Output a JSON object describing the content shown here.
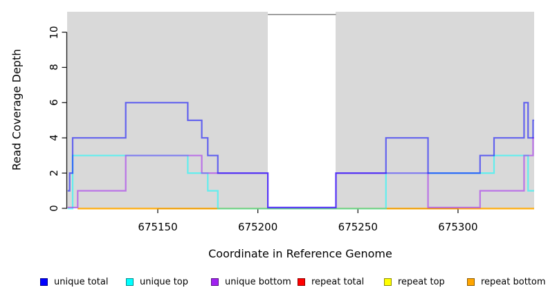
{
  "figure": {
    "xlabel": "Coordinate in Reference Genome",
    "ylabel": "Read Coverage Depth"
  },
  "chart_data": {
    "type": "line",
    "subtype": "step-coverage",
    "title": "",
    "xlabel": "Coordinate in Reference Genome",
    "ylabel": "Read Coverage Depth",
    "xlim": [
      675104.5,
      675338
    ],
    "ylim": [
      0,
      11.15
    ],
    "x_ticks": [
      675150,
      675200,
      675250,
      675300
    ],
    "y_ticks": [
      0,
      2,
      4,
      6,
      8,
      10
    ],
    "grid": false,
    "plot_background": "#d9d9d9",
    "page_background": "#ffffff",
    "masked_region": {
      "x_start": 675205,
      "x_end": 675239,
      "color": "#ffffff",
      "cap_depth": 11,
      "cap_line_color": "#808080"
    },
    "legend_position": "bottom",
    "line_opacity": 0.55,
    "line_width": 2.2,
    "draw_order": [
      "repeat total",
      "repeat top",
      "repeat bottom",
      "unique top",
      "unique bottom",
      "unique total"
    ],
    "series": [
      {
        "name": "unique total",
        "color": "#0000ff",
        "steps": [
          [
            675105,
            1
          ],
          [
            675106,
            2
          ],
          [
            675107.5,
            4
          ],
          [
            675134,
            6
          ],
          [
            675165,
            5
          ],
          [
            675172,
            4
          ],
          [
            675175,
            3
          ],
          [
            675180,
            2
          ],
          [
            675205,
            0
          ],
          [
            675239,
            2
          ],
          [
            675264,
            4
          ],
          [
            675285,
            2
          ],
          [
            675311,
            3
          ],
          [
            675318,
            4
          ],
          [
            675333,
            6
          ],
          [
            675335,
            4
          ],
          [
            675337.5,
            5
          ],
          [
            675338,
            5
          ]
        ]
      },
      {
        "name": "unique top",
        "color": "#00ffff",
        "steps": [
          [
            675105,
            0
          ],
          [
            675107.5,
            3
          ],
          [
            675165,
            2
          ],
          [
            675175,
            1
          ],
          [
            675180,
            0
          ],
          [
            675264,
            2
          ],
          [
            675318,
            3
          ],
          [
            675335,
            1
          ],
          [
            675338,
            1
          ]
        ]
      },
      {
        "name": "unique bottom",
        "color": "#a020f0",
        "steps": [
          [
            675105,
            0
          ],
          [
            675110,
            1
          ],
          [
            675134,
            3
          ],
          [
            675172,
            2
          ],
          [
            675205,
            0
          ],
          [
            675239,
            2
          ],
          [
            675285,
            0
          ],
          [
            675311,
            1
          ],
          [
            675333,
            3
          ],
          [
            675337.5,
            4
          ],
          [
            675338,
            4
          ]
        ]
      },
      {
        "name": "repeat total",
        "color": "#ff0000",
        "steps": [
          [
            675110,
            0
          ],
          [
            675338,
            0
          ]
        ]
      },
      {
        "name": "repeat top",
        "color": "#ffff00",
        "steps": [
          [
            675110,
            0
          ],
          [
            675338,
            0
          ]
        ]
      },
      {
        "name": "repeat bottom",
        "color": "#ffa500",
        "steps": [
          [
            675110,
            0
          ],
          [
            675338,
            0
          ]
        ]
      }
    ]
  },
  "legend": {
    "items": [
      {
        "label": "unique total",
        "color": "#0000ff"
      },
      {
        "label": "unique top",
        "color": "#00ffff"
      },
      {
        "label": "unique bottom",
        "color": "#a020f0"
      },
      {
        "label": "repeat total",
        "color": "#ff0000"
      },
      {
        "label": "repeat top",
        "color": "#ffff00"
      },
      {
        "label": "repeat bottom",
        "color": "#ffa500"
      }
    ]
  }
}
